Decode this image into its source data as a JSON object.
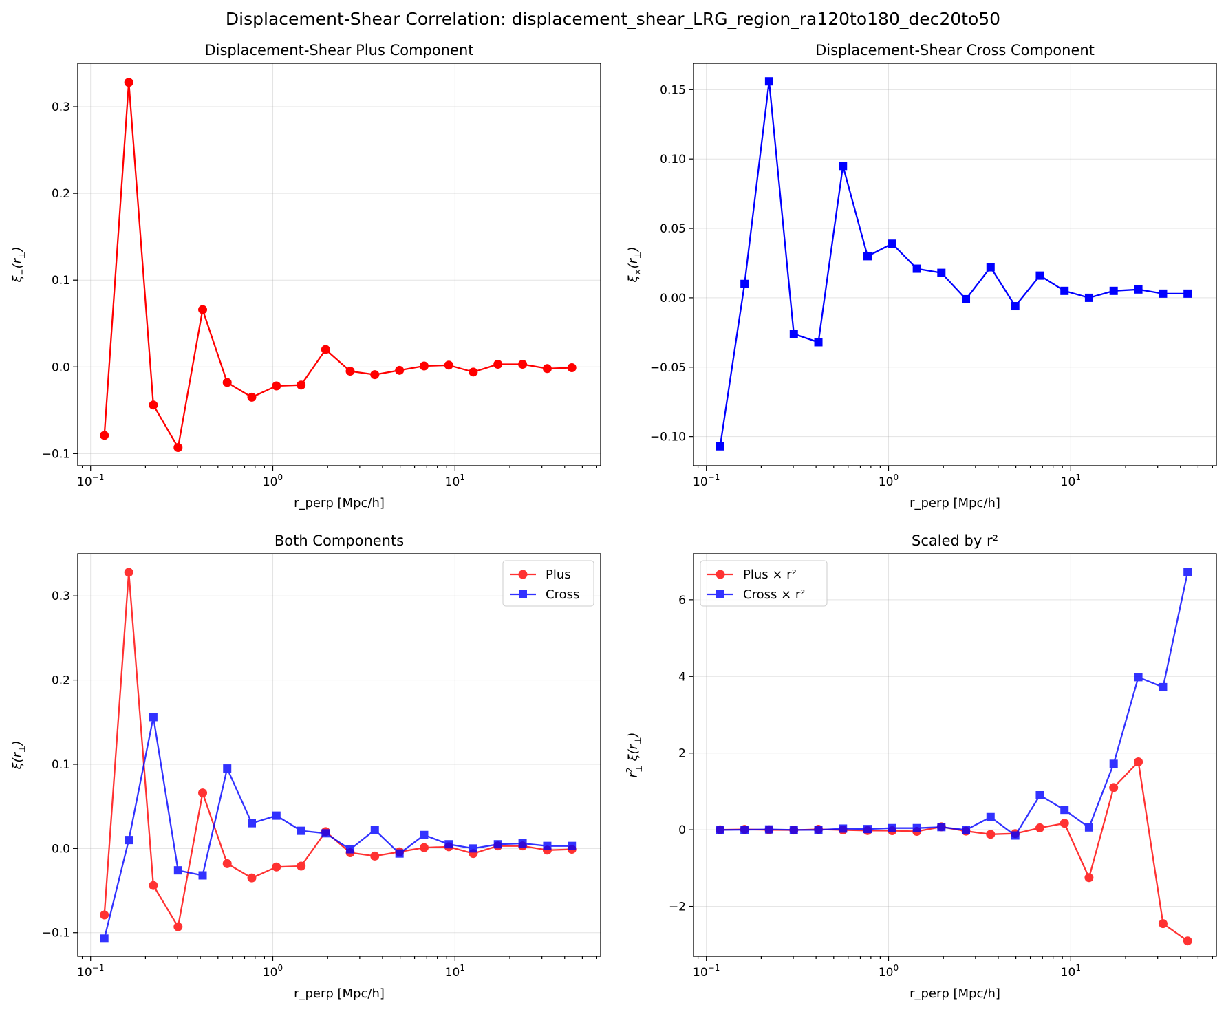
{
  "figure": {
    "suptitle": "Displacement-Shear Correlation: displacement_shear_LRG_region_ra120to180_dec20to50"
  },
  "chart_data": [
    {
      "type": "line",
      "title": "Displacement-Shear Plus Component",
      "xlabel": "r_perp [Mpc/h]",
      "ylabel_symbol": "ξ",
      "ylabel_subscript": "+",
      "ylabel_arg": "(r",
      "ylabel_arg_subscript": "⊥",
      "ylabel_close": ")",
      "xscale": "log",
      "xlim": [
        0.085,
        63
      ],
      "ylim": [
        -0.114,
        0.35
      ],
      "xticks": [
        {
          "value": 0.1,
          "base": "10",
          "exp": "−1"
        },
        {
          "value": 1,
          "base": "10",
          "exp": "0"
        },
        {
          "value": 10,
          "base": "10",
          "exp": "1"
        }
      ],
      "yticks": [
        {
          "value": -0.1,
          "label": "−0.1"
        },
        {
          "value": 0.0,
          "label": "0.0"
        },
        {
          "value": 0.1,
          "label": "0.1"
        },
        {
          "value": 0.2,
          "label": "0.2"
        },
        {
          "value": 0.3,
          "label": "0.3"
        }
      ],
      "grid": true,
      "legend": null,
      "x": [
        0.119,
        0.162,
        0.221,
        0.302,
        0.412,
        0.562,
        0.767,
        1.047,
        1.43,
        1.95,
        2.66,
        3.63,
        4.96,
        6.77,
        9.24,
        12.6,
        17.2,
        23.5,
        32.1,
        43.8
      ],
      "series": [
        {
          "values": [
            -0.079,
            0.328,
            -0.044,
            -0.093,
            0.066,
            -0.018,
            -0.035,
            -0.022,
            -0.021,
            0.02,
            -0.005,
            -0.009,
            -0.004,
            0.001,
            0.002,
            -0.006,
            0.003,
            0.003,
            -0.002,
            -0.001
          ],
          "color": "#ff0000",
          "marker": "circle",
          "opacity": 1
        }
      ]
    },
    {
      "type": "line",
      "title": "Displacement-Shear Cross Component",
      "xlabel": "r_perp [Mpc/h]",
      "ylabel_symbol": "ξ",
      "ylabel_subscript": "×",
      "ylabel_arg": "(r",
      "ylabel_arg_subscript": "⊥",
      "ylabel_close": ")",
      "xscale": "log",
      "xlim": [
        0.085,
        63
      ],
      "ylim": [
        -0.121,
        0.169
      ],
      "xticks": [
        {
          "value": 0.1,
          "base": "10",
          "exp": "−1"
        },
        {
          "value": 1,
          "base": "10",
          "exp": "0"
        },
        {
          "value": 10,
          "base": "10",
          "exp": "1"
        }
      ],
      "yticks": [
        {
          "value": -0.1,
          "label": "−0.10"
        },
        {
          "value": -0.05,
          "label": "−0.05"
        },
        {
          "value": 0.0,
          "label": "0.00"
        },
        {
          "value": 0.05,
          "label": "0.05"
        },
        {
          "value": 0.1,
          "label": "0.10"
        },
        {
          "value": 0.15,
          "label": "0.15"
        }
      ],
      "grid": true,
      "legend": null,
      "x": [
        0.119,
        0.162,
        0.221,
        0.302,
        0.412,
        0.562,
        0.767,
        1.047,
        1.43,
        1.95,
        2.66,
        3.63,
        4.96,
        6.77,
        9.24,
        12.6,
        17.2,
        23.5,
        32.1,
        43.8
      ],
      "series": [
        {
          "values": [
            -0.107,
            0.01,
            0.156,
            -0.026,
            -0.032,
            0.095,
            0.03,
            0.039,
            0.021,
            0.018,
            -0.001,
            0.022,
            -0.006,
            0.016,
            0.005,
            0.0,
            0.005,
            0.006,
            0.003,
            0.003
          ],
          "color": "#0000ff",
          "marker": "square",
          "opacity": 1
        }
      ]
    },
    {
      "type": "line",
      "title": "Both Components",
      "xlabel": "r_perp [Mpc/h]",
      "ylabel_symbol": "ξ",
      "ylabel_subscript": "",
      "ylabel_arg": "(r",
      "ylabel_arg_subscript": "⊥",
      "ylabel_close": ")",
      "xscale": "log",
      "xlim": [
        0.085,
        63
      ],
      "ylim": [
        -0.128,
        0.35
      ],
      "xticks": [
        {
          "value": 0.1,
          "base": "10",
          "exp": "−1"
        },
        {
          "value": 1,
          "base": "10",
          "exp": "0"
        },
        {
          "value": 10,
          "base": "10",
          "exp": "1"
        }
      ],
      "yticks": [
        {
          "value": -0.1,
          "label": "−0.1"
        },
        {
          "value": 0.0,
          "label": "0.0"
        },
        {
          "value": 0.1,
          "label": "0.1"
        },
        {
          "value": 0.2,
          "label": "0.2"
        },
        {
          "value": 0.3,
          "label": "0.3"
        }
      ],
      "grid": true,
      "legend": "top-right",
      "x": [
        0.119,
        0.162,
        0.221,
        0.302,
        0.412,
        0.562,
        0.767,
        1.047,
        1.43,
        1.95,
        2.66,
        3.63,
        4.96,
        6.77,
        9.24,
        12.6,
        17.2,
        23.5,
        32.1,
        43.8
      ],
      "series": [
        {
          "name": "Plus",
          "values": [
            -0.079,
            0.328,
            -0.044,
            -0.093,
            0.066,
            -0.018,
            -0.035,
            -0.022,
            -0.021,
            0.02,
            -0.005,
            -0.009,
            -0.004,
            0.001,
            0.002,
            -0.006,
            0.003,
            0.003,
            -0.002,
            -0.001
          ],
          "color": "#ff0000",
          "marker": "circle",
          "opacity": 0.8
        },
        {
          "name": "Cross",
          "values": [
            -0.107,
            0.01,
            0.156,
            -0.026,
            -0.032,
            0.095,
            0.03,
            0.039,
            0.021,
            0.018,
            -0.001,
            0.022,
            -0.006,
            0.016,
            0.005,
            0.0,
            0.005,
            0.006,
            0.003,
            0.003
          ],
          "color": "#0000ff",
          "marker": "square",
          "opacity": 0.8
        }
      ]
    },
    {
      "type": "line",
      "title": "Scaled by r²",
      "xlabel": "r_perp [Mpc/h]",
      "ylabel_symbol": "r",
      "ylabel_sup": "2",
      "ylabel_subscript": "⊥",
      "ylabel_extra": " ξ(r",
      "ylabel_arg_subscript": "⊥",
      "ylabel_close": ")",
      "xscale": "log",
      "xlim": [
        0.085,
        63
      ],
      "ylim": [
        -3.3,
        7.2
      ],
      "xticks": [
        {
          "value": 0.1,
          "base": "10",
          "exp": "−1"
        },
        {
          "value": 1,
          "base": "10",
          "exp": "0"
        },
        {
          "value": 10,
          "base": "10",
          "exp": "1"
        }
      ],
      "yticks": [
        {
          "value": -2,
          "label": "−2"
        },
        {
          "value": 0,
          "label": "0"
        },
        {
          "value": 2,
          "label": "2"
        },
        {
          "value": 4,
          "label": "4"
        },
        {
          "value": 6,
          "label": "6"
        }
      ],
      "grid": true,
      "legend": "top-left",
      "x": [
        0.119,
        0.162,
        0.221,
        0.302,
        0.412,
        0.562,
        0.767,
        1.047,
        1.43,
        1.95,
        2.66,
        3.63,
        4.96,
        6.77,
        9.24,
        12.6,
        17.2,
        23.5,
        32.1,
        43.8
      ],
      "series": [
        {
          "name": "Plus × r²",
          "values": [
            -0.001,
            0.009,
            -0.002,
            -0.008,
            0.011,
            -0.006,
            -0.021,
            -0.024,
            -0.043,
            0.076,
            -0.035,
            -0.12,
            -0.1,
            0.05,
            0.17,
            -1.25,
            1.1,
            1.77,
            -2.45,
            -2.9
          ],
          "color": "#ff0000",
          "marker": "circle",
          "opacity": 0.8
        },
        {
          "name": "Cross × r²",
          "values": [
            -0.002,
            0.0,
            0.008,
            -0.002,
            -0.005,
            0.03,
            0.018,
            0.043,
            0.043,
            0.069,
            -0.004,
            0.33,
            -0.15,
            0.9,
            0.52,
            0.06,
            1.72,
            3.98,
            3.72,
            6.72
          ],
          "color": "#0000ff",
          "marker": "square",
          "opacity": 0.8
        }
      ]
    }
  ]
}
